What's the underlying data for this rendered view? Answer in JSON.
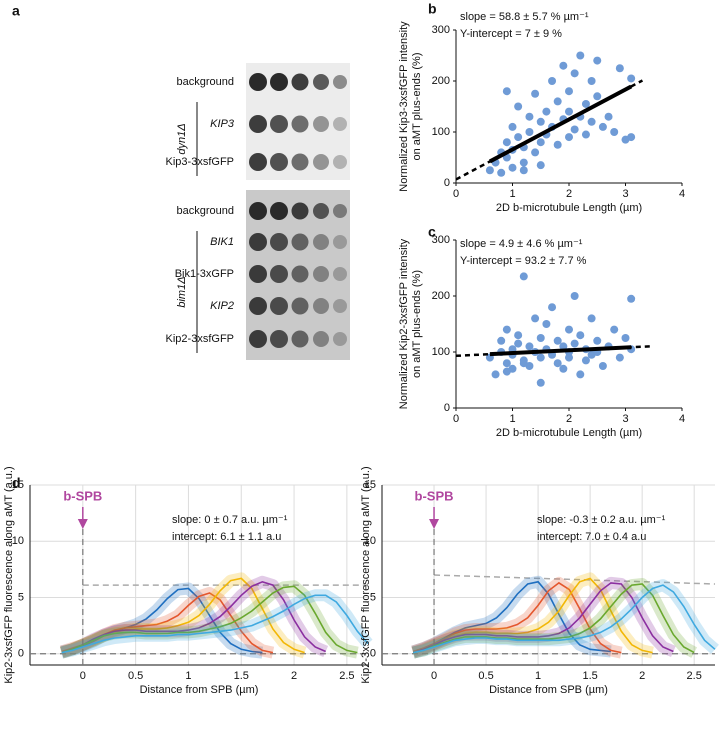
{
  "panel_a": {
    "label": "a",
    "groups": [
      {
        "label": "dyn1Δ",
        "rows": [
          "background",
          "KIP3",
          "Kip3-3xsfGFP"
        ],
        "italic": [
          false,
          true,
          false
        ]
      },
      {
        "label": "bim1Δ",
        "rows": [
          "background",
          "BIK1",
          "Bik1-3xGFP",
          "KIP2",
          "Kip2-3xsfGFP"
        ],
        "italic": [
          false,
          true,
          false,
          true,
          false
        ]
      }
    ]
  },
  "chart_data": [
    {
      "type": "scatter",
      "panel": "b",
      "color": "#6f9bd6",
      "annotations": [
        "slope = 58.8 ± 5.7 % µm⁻¹",
        "Y-intercept = 7 ± 9 %"
      ],
      "xlabel": "2D b-microtubule Length (µm)",
      "ylabel": [
        "Normalized Kip3-3xsfGFP intensity",
        "on aMT plus-ends (%)"
      ],
      "xlim": [
        0,
        4
      ],
      "ylim": [
        0,
        300
      ],
      "xticks": [
        0,
        1,
        2,
        3,
        4
      ],
      "yticks": [
        0,
        100,
        200,
        300
      ],
      "grid": false,
      "x": [
        0.6,
        0.7,
        0.8,
        0.8,
        0.9,
        0.9,
        1.0,
        1.0,
        1.0,
        1.1,
        1.1,
        1.2,
        1.2,
        1.3,
        1.3,
        1.4,
        1.4,
        1.5,
        1.5,
        1.5,
        1.6,
        1.6,
        1.7,
        1.7,
        1.8,
        1.8,
        1.9,
        1.9,
        2.0,
        2.0,
        2.0,
        2.1,
        2.1,
        2.2,
        2.2,
        2.3,
        2.3,
        2.4,
        2.4,
        2.5,
        2.5,
        2.6,
        2.7,
        2.8,
        2.9,
        3.0,
        3.1,
        3.1,
        1.2,
        0.9
      ],
      "values": [
        25,
        40,
        60,
        20,
        80,
        50,
        30,
        110,
        65,
        150,
        90,
        40,
        70,
        130,
        100,
        175,
        60,
        120,
        80,
        35,
        140,
        95,
        200,
        110,
        160,
        75,
        230,
        125,
        140,
        90,
        180,
        105,
        215,
        250,
        130,
        155,
        95,
        200,
        120,
        170,
        240,
        110,
        130,
        100,
        225,
        85,
        205,
        90,
        25,
        180
      ],
      "fit": {
        "x": [
          0,
          3.3
        ],
        "values": [
          7,
          201
        ]
      }
    },
    {
      "type": "scatter",
      "panel": "c",
      "color": "#6f9bd6",
      "annotations": [
        "slope = 4.9 ± 4.6 % µm⁻¹",
        "Y-intercept = 93.2 ± 7.7 %"
      ],
      "xlabel": "2D b-microtubule Length (µm)",
      "ylabel": [
        "Normalized Kip2-3xsfGFP intensity",
        "on aMT plus-ends (%)"
      ],
      "xlim": [
        0,
        4
      ],
      "ylim": [
        0,
        300
      ],
      "xticks": [
        0,
        1,
        2,
        3,
        4
      ],
      "yticks": [
        0,
        100,
        200,
        300
      ],
      "grid": false,
      "x": [
        0.6,
        0.7,
        0.8,
        0.8,
        0.9,
        0.9,
        1.0,
        1.0,
        1.0,
        1.1,
        1.1,
        1.2,
        1.2,
        1.3,
        1.3,
        1.4,
        1.4,
        1.5,
        1.5,
        1.5,
        1.6,
        1.6,
        1.7,
        1.7,
        1.8,
        1.8,
        1.9,
        1.9,
        2.0,
        2.0,
        2.0,
        2.1,
        2.1,
        2.2,
        2.2,
        2.3,
        2.3,
        2.4,
        2.4,
        2.5,
        2.5,
        2.6,
        2.7,
        2.8,
        2.9,
        3.0,
        3.1,
        3.1,
        1.2,
        0.9
      ],
      "values": [
        90,
        60,
        120,
        100,
        140,
        80,
        105,
        95,
        70,
        115,
        130,
        85,
        235,
        110,
        75,
        160,
        100,
        90,
        125,
        45,
        150,
        105,
        95,
        180,
        80,
        120,
        110,
        70,
        140,
        100,
        90,
        200,
        115,
        60,
        130,
        105,
        85,
        160,
        95,
        120,
        100,
        75,
        110,
        140,
        90,
        125,
        195,
        105,
        80,
        65
      ],
      "fit": {
        "x": [
          0,
          3.5
        ],
        "values": [
          93.2,
          110.4
        ]
      }
    },
    {
      "type": "line",
      "panel": "d",
      "annotations": [
        "slope: 0 ± 0.7 a.u. µm⁻¹",
        "intercept: 6.1 ± 1.1 a.u"
      ],
      "marker": {
        "x": 0,
        "label": "b-SPB"
      },
      "xlabel": "Distance from SPB (µm)",
      "ylabel": "Kip2-3xsfGFP fluorescence along aMT (a.u.)",
      "xlim": [
        -0.5,
        2.7
      ],
      "ylim": [
        -1,
        15
      ],
      "xticks": [
        0,
        0.5,
        1,
        1.5,
        2,
        2.5
      ],
      "yticks": [
        0,
        5,
        10,
        15
      ],
      "grid": true,
      "x": [
        -0.2,
        -0.1,
        0,
        0.1,
        0.2,
        0.3,
        0.4,
        0.5,
        0.6,
        0.7,
        0.8,
        0.9,
        1.0,
        1.1,
        1.2,
        1.3,
        1.4,
        1.5,
        1.6,
        1.7,
        1.8,
        1.9,
        2.0,
        2.1,
        2.2,
        2.3,
        2.4,
        2.5,
        2.6,
        2.7
      ],
      "series": [
        {
          "color": "#1f6fc0",
          "values": [
            0.2,
            0.4,
            0.7,
            1.1,
            1.6,
            2.0,
            2.3,
            2.6,
            3.1,
            3.9,
            4.9,
            5.7,
            5.8,
            4.9,
            3.4,
            1.9,
            0.9,
            0.4,
            0.2,
            0.1,
            null,
            null,
            null,
            null,
            null,
            null,
            null,
            null,
            null,
            null
          ]
        },
        {
          "color": "#e4572e",
          "values": [
            0.2,
            0.5,
            0.8,
            1.2,
            1.7,
            2.1,
            2.3,
            2.4,
            2.5,
            2.6,
            2.9,
            3.4,
            4.3,
            5.1,
            5.4,
            4.8,
            3.4,
            2.0,
            0.9,
            0.3,
            0.1,
            null,
            null,
            null,
            null,
            null,
            null,
            null,
            null,
            null
          ]
        },
        {
          "color": "#f2b705",
          "values": [
            0.1,
            0.4,
            0.8,
            1.2,
            1.6,
            1.9,
            2.1,
            2.2,
            2.2,
            2.2,
            2.3,
            2.5,
            2.8,
            3.4,
            4.4,
            5.6,
            6.5,
            6.7,
            5.8,
            4.0,
            2.2,
            1.0,
            0.4,
            0.1,
            null,
            null,
            null,
            null,
            null,
            null
          ]
        },
        {
          "color": "#8b2fa0",
          "values": [
            0.1,
            0.4,
            0.8,
            1.3,
            1.7,
            2.0,
            2.1,
            2.1,
            2.0,
            2.0,
            2.0,
            2.0,
            2.1,
            2.3,
            2.7,
            3.3,
            4.2,
            5.2,
            6.0,
            6.4,
            6.1,
            4.8,
            3.0,
            1.5,
            0.6,
            0.2,
            null,
            null,
            null,
            null
          ]
        },
        {
          "color": "#6aa82e",
          "values": [
            0.1,
            0.4,
            0.8,
            1.2,
            1.6,
            1.8,
            1.9,
            1.9,
            1.8,
            1.8,
            1.8,
            1.9,
            1.9,
            2.0,
            2.2,
            2.4,
            2.7,
            3.2,
            3.8,
            4.6,
            5.4,
            5.9,
            6.0,
            5.2,
            3.6,
            1.9,
            0.8,
            0.3,
            0.1,
            null
          ]
        },
        {
          "color": "#3fa9e0",
          "values": [
            0.1,
            0.3,
            0.6,
            0.9,
            1.2,
            1.4,
            1.5,
            1.6,
            1.6,
            1.6,
            1.6,
            1.7,
            1.7,
            1.8,
            1.9,
            2.0,
            2.1,
            2.3,
            2.5,
            2.9,
            3.3,
            3.8,
            4.4,
            4.9,
            5.2,
            5.2,
            4.6,
            3.4,
            2.0,
            0.9
          ]
        }
      ],
      "fit": {
        "x": [
          0,
          2.7
        ],
        "values": [
          6.1,
          6.1
        ]
      }
    },
    {
      "type": "line",
      "annotations": [
        "slope: -0.3 ± 0.2 a.u. µm⁻¹",
        "intercept: 7.0 ± 0.4 a.u"
      ],
      "marker": {
        "x": 0,
        "label": "b-SPB"
      },
      "xlabel": "Distance from SPB (µm)",
      "ylabel": "Kip2-3xsfGFP fluorescence along aMT (a.u.)",
      "xlim": [
        -0.5,
        2.7
      ],
      "ylim": [
        -1,
        15
      ],
      "xticks": [
        0,
        0.5,
        1,
        1.5,
        2,
        2.5
      ],
      "yticks": [
        0,
        5,
        10,
        15
      ],
      "grid": true,
      "x": [
        -0.2,
        -0.1,
        0,
        0.1,
        0.2,
        0.3,
        0.4,
        0.5,
        0.6,
        0.7,
        0.8,
        0.9,
        1.0,
        1.1,
        1.2,
        1.3,
        1.4,
        1.5,
        1.6,
        1.7,
        1.8,
        1.9,
        2.0,
        2.1,
        2.2,
        2.3,
        2.4,
        2.5,
        2.6,
        2.7
      ],
      "series": [
        {
          "color": "#1f6fc0",
          "values": [
            0.2,
            0.5,
            0.9,
            1.4,
            1.9,
            2.3,
            2.5,
            2.7,
            3.2,
            4.1,
            5.3,
            6.2,
            6.4,
            5.3,
            3.5,
            1.8,
            0.8,
            0.4,
            0.3,
            0.2,
            null,
            null,
            null,
            null,
            null,
            null,
            null,
            null,
            null,
            null
          ]
        },
        {
          "color": "#e4572e",
          "values": [
            0.2,
            0.5,
            0.9,
            1.3,
            1.8,
            2.1,
            2.2,
            2.2,
            2.2,
            2.3,
            2.6,
            3.2,
            4.3,
            5.6,
            6.3,
            5.7,
            4.0,
            2.2,
            0.9,
            0.3,
            0.1,
            null,
            null,
            null,
            null,
            null,
            null,
            null,
            null,
            null
          ]
        },
        {
          "color": "#f2b705",
          "values": [
            0.1,
            0.4,
            0.8,
            1.2,
            1.6,
            1.8,
            1.9,
            1.9,
            1.8,
            1.8,
            1.8,
            1.9,
            2.2,
            2.8,
            3.8,
            5.2,
            6.4,
            6.7,
            5.7,
            3.8,
            2.0,
            0.8,
            0.3,
            0.1,
            null,
            null,
            null,
            null,
            null,
            null
          ]
        },
        {
          "color": "#8b2fa0",
          "values": [
            0.1,
            0.4,
            0.8,
            1.2,
            1.5,
            1.7,
            1.7,
            1.7,
            1.6,
            1.6,
            1.5,
            1.5,
            1.5,
            1.6,
            1.8,
            2.3,
            3.2,
            4.4,
            5.6,
            6.3,
            6.2,
            5.0,
            3.2,
            1.6,
            0.6,
            0.2,
            null,
            null,
            null,
            null
          ]
        },
        {
          "color": "#6aa82e",
          "values": [
            0.1,
            0.3,
            0.7,
            1.0,
            1.3,
            1.5,
            1.5,
            1.5,
            1.4,
            1.4,
            1.3,
            1.3,
            1.3,
            1.3,
            1.4,
            1.5,
            1.8,
            2.3,
            3.1,
            4.2,
            5.3,
            6.1,
            6.2,
            5.2,
            3.4,
            1.7,
            0.6,
            0.1,
            null,
            null
          ]
        },
        {
          "color": "#3fa9e0",
          "values": [
            0.1,
            0.3,
            0.6,
            0.9,
            1.2,
            1.3,
            1.4,
            1.4,
            1.3,
            1.3,
            1.2,
            1.2,
            1.2,
            1.2,
            1.2,
            1.3,
            1.4,
            1.6,
            1.9,
            2.4,
            3.1,
            4.0,
            5.0,
            5.8,
            6.1,
            5.5,
            4.2,
            2.6,
            1.2,
            0.4
          ]
        }
      ],
      "fit": {
        "x": [
          0,
          2.7
        ],
        "values": [
          7.0,
          6.2
        ]
      }
    }
  ]
}
